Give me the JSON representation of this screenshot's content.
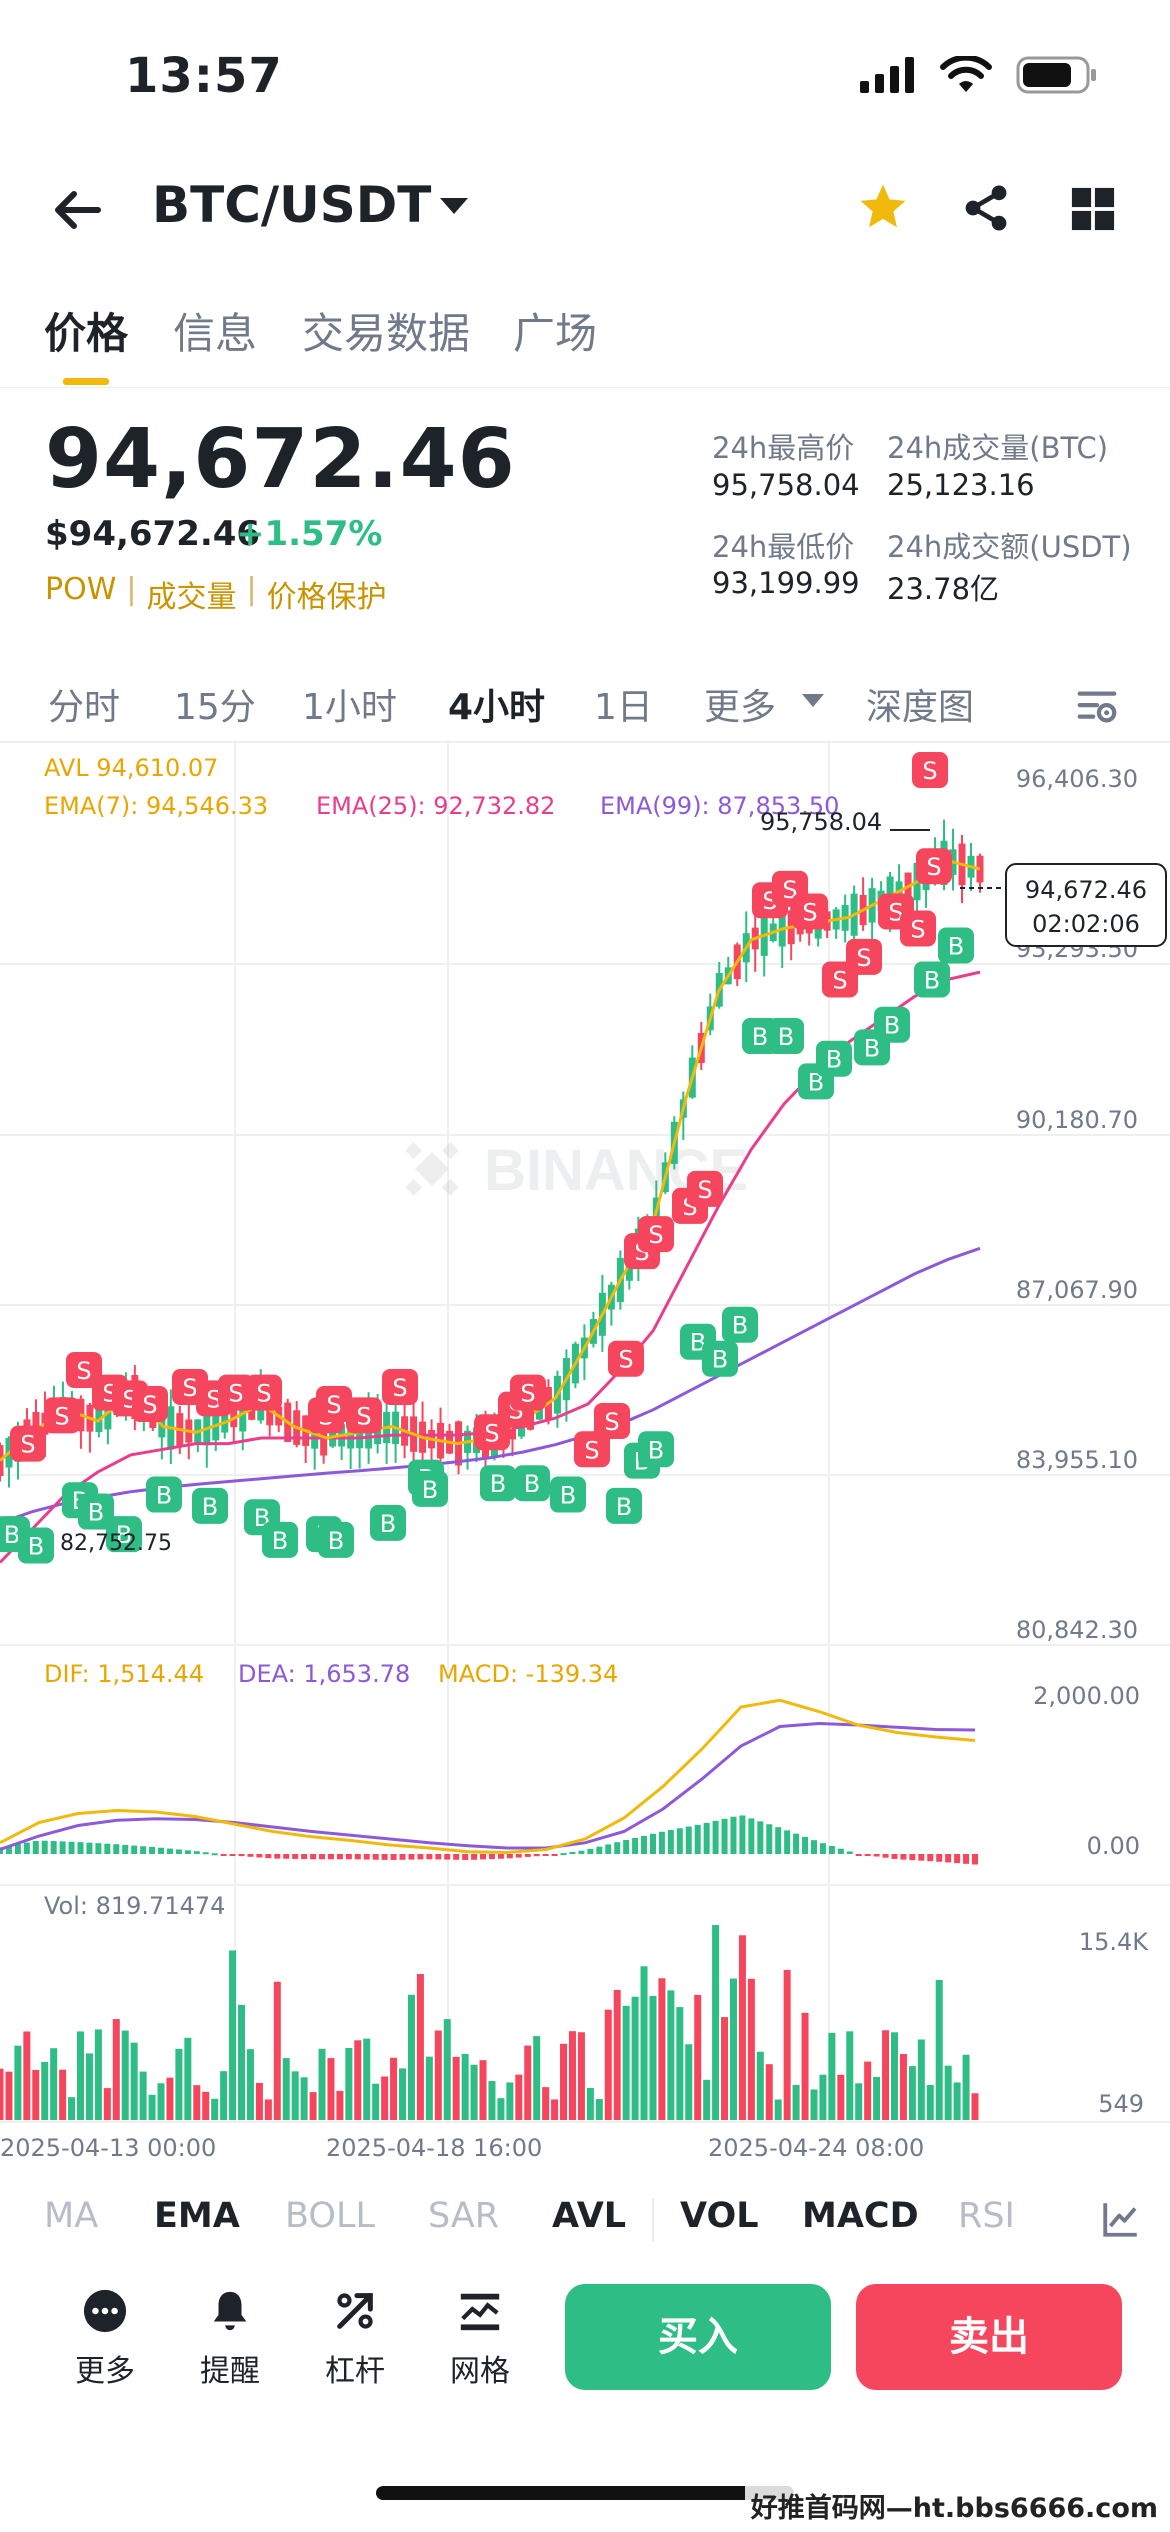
{
  "status": {
    "time": "13:57"
  },
  "nav": {
    "pair": "BTC/USDT"
  },
  "tabs": [
    "价格",
    "信息",
    "交易数据",
    "广场"
  ],
  "price": {
    "last": "94,672.46",
    "usd": "$94,672.46",
    "change": "+1.57%",
    "tags": [
      "POW",
      "成交量",
      "价格保护"
    ]
  },
  "stats": {
    "high_label": "24h最高价",
    "high": "95,758.04",
    "vol_btc_label": "24h成交量(BTC)",
    "vol_btc": "25,123.16",
    "low_label": "24h最低价",
    "low": "93,199.99",
    "vol_usdt_label": "24h成交额(USDT)",
    "vol_usdt": "23.78亿"
  },
  "intervals": [
    "分时",
    "15分",
    "1小时",
    "4小时",
    "1日",
    "更多",
    "深度图"
  ],
  "active_interval": "4小时",
  "chart_data": {
    "type": "candlestick",
    "pair": "BTC/USDT",
    "interval": "4小时",
    "watermark": "BINANCE",
    "legend": {
      "avl": "AVL 94,610.07",
      "ema7": "EMA(7): 94,546.33",
      "ema25": "EMA(25): 92,732.82",
      "ema99": "EMA(99): 87,853.50"
    },
    "price_axis": [
      "96,406.30",
      "93,293.50",
      "90,180.70",
      "87,067.90",
      "83,955.10",
      "80,842.30"
    ],
    "high_marker": "95,758.04",
    "low_marker": "82,752.75",
    "current_price": "94,672.46",
    "countdown": "02:02:06",
    "ema7": [
      84100,
      84600,
      85000,
      84800,
      85300,
      84700,
      84600,
      84800,
      85100,
      84700,
      84500,
      84600,
      84700,
      84500,
      84400,
      84500,
      84800,
      85200,
      86200,
      87300,
      88300,
      90500,
      92400,
      93300,
      93500,
      93600,
      93700,
      94000,
      94300,
      94700,
      94550
    ],
    "ema25": [
      82300,
      82900,
      83500,
      83900,
      84200,
      84300,
      84400,
      84400,
      84500,
      84500,
      84500,
      84500,
      84550,
      84550,
      84550,
      84600,
      84700,
      84850,
      85100,
      85700,
      86400,
      87500,
      88600,
      89600,
      90400,
      91000,
      91500,
      91900,
      92300,
      92600,
      92730
    ],
    "ema99": [
      83000,
      83200,
      83350,
      83450,
      83550,
      83620,
      83680,
      83730,
      83780,
      83830,
      83880,
      83920,
      83970,
      84020,
      84080,
      84150,
      84250,
      84380,
      84550,
      84750,
      85000,
      85300,
      85600,
      85900,
      86200,
      86500,
      86800,
      87100,
      87400,
      87650,
      87850
    ],
    "macd": {
      "dif": "DIF: 1,514.44",
      "dea": "DEA: 1,653.78",
      "macd": "MACD: -139.34",
      "axis": [
        "2,000.00",
        "0.00"
      ]
    },
    "volume": {
      "label": "Vol: 819.71474",
      "axis": [
        "15.4K",
        "549"
      ]
    },
    "time_axis": [
      "2025-04-13 00:00",
      "2025-04-18 16:00",
      "2025-04-24 08:00"
    ]
  },
  "indicators": [
    "MA",
    "EMA",
    "BOLL",
    "SAR",
    "AVL",
    "VOL",
    "MACD",
    "RSI"
  ],
  "indicators_on": [
    "EMA",
    "AVL",
    "VOL",
    "MACD"
  ],
  "bottom": {
    "more": "更多",
    "alert": "提醒",
    "leverage": "杠杆",
    "grid": "网格",
    "buy": "买入",
    "sell": "卖出"
  },
  "footer_watermark": "好推首码网—ht.bbs6666.com",
  "colors": {
    "up": "#2ebd85",
    "down": "#f6465d",
    "accent": "#f0b90b",
    "ema7": "#f0b90b",
    "ema25": "#e83e8c",
    "ema99": "#8c5ad8"
  }
}
